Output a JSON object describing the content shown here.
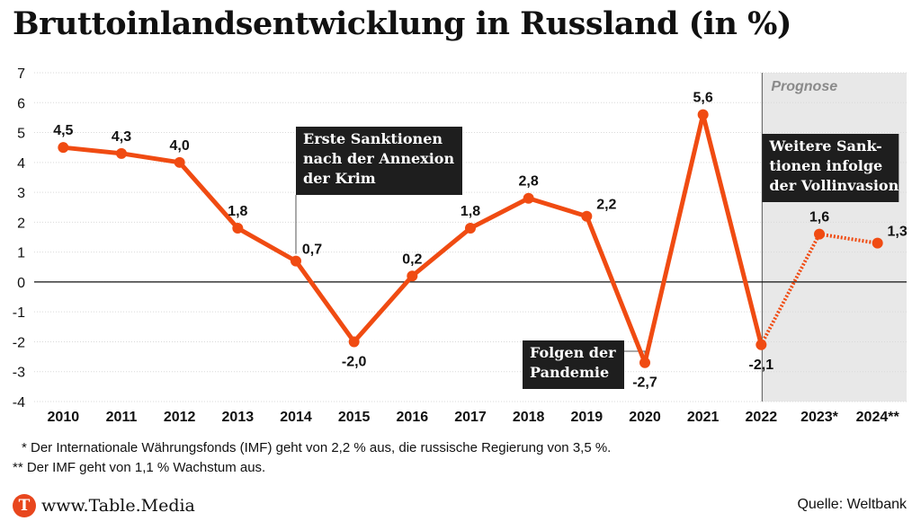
{
  "title": "Bruttoinlandsentwicklung in Russland (in %)",
  "chart_data": {
    "type": "line",
    "title": "Bruttoinlandsentwicklung in Russland (in %)",
    "categories": [
      "2010",
      "2011",
      "2012",
      "2013",
      "2014",
      "2015",
      "2016",
      "2017",
      "2018",
      "2019",
      "2020",
      "2021",
      "2022",
      "2023*",
      "2024**"
    ],
    "values": [
      4.5,
      4.3,
      4.0,
      1.8,
      0.7,
      -2.0,
      0.2,
      1.8,
      2.8,
      2.2,
      -2.7,
      5.6,
      -2.1,
      1.6,
      1.3
    ],
    "value_labels": [
      "4,5",
      "4,3",
      "4,0",
      "1,8",
      "0,7",
      "-2,0",
      "0,2",
      "1,8",
      "2,8",
      "2,2",
      "-2,7",
      "5,6",
      "-2,1",
      "1,6",
      "1,3"
    ],
    "ylim": [
      -4,
      7
    ],
    "yticks": [
      "-4",
      "-3",
      "-2",
      "-1",
      "0",
      "1",
      "2",
      "3",
      "4",
      "5",
      "6",
      "7"
    ],
    "forecast_from_index": 12,
    "forecast_label": "Prognose",
    "line_color": "#f04b12",
    "forecast_shading": "#e8e8e8",
    "annotations": [
      {
        "lines": [
          "Erste Sanktionen",
          "nach der Annexion",
          "der Krim"
        ],
        "year_index": 4
      },
      {
        "lines": [
          "Folgen der",
          "Pandemie"
        ],
        "year_index": 10
      },
      {
        "lines": [
          "Weitere Sank-",
          "tionen infolge",
          "der Vollinvasion"
        ],
        "year_index": 12
      }
    ]
  },
  "footnotes": [
    "* Der Internationale Währungsfonds (IMF) geht von 2,2 % aus, die russische Regierung von 3,5 %.",
    "** Der IMF geht von 1,1 % Wachstum aus."
  ],
  "brand": {
    "logo_letter": "T",
    "name": "www.Table.Media"
  },
  "source": "Quelle: Weltbank"
}
